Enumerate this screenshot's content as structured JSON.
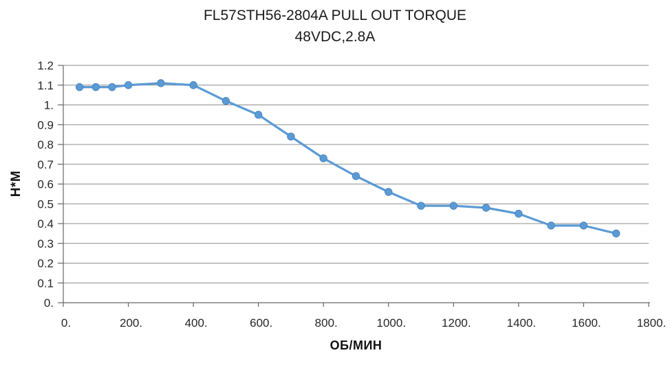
{
  "chart_data": {
    "type": "line",
    "title": "FL57STH56-2804A PULL OUT TORQUE",
    "subtitle": "48VDC,2.8A",
    "xlabel": "ОБ/МИН",
    "ylabel": "Н*М",
    "x": [
      50,
      100,
      150,
      200,
      300,
      400,
      500,
      600,
      700,
      800,
      900,
      1000,
      1100,
      1200,
      1300,
      1400,
      1500,
      1600,
      1700
    ],
    "values": [
      1.09,
      1.09,
      1.09,
      1.1,
      1.11,
      1.1,
      1.02,
      0.95,
      0.84,
      0.73,
      0.64,
      0.56,
      0.49,
      0.49,
      0.48,
      0.45,
      0.39,
      0.39,
      0.35
    ],
    "xlim": [
      0,
      1800
    ],
    "ylim": [
      0,
      1.2
    ],
    "x_ticks": {
      "values": [
        0,
        200,
        400,
        600,
        800,
        1000,
        1200,
        1400,
        1600,
        1800
      ],
      "labels": [
        "0.",
        "200.",
        "400.",
        "600.",
        "800.",
        "1000.",
        "1200.",
        "1400.",
        "1600.",
        "1800."
      ]
    },
    "y_ticks": {
      "values": [
        0,
        0.1,
        0.2,
        0.3,
        0.4,
        0.5,
        0.6,
        0.7,
        0.8,
        0.9,
        1.0,
        1.1,
        1.2
      ],
      "labels": [
        "0.",
        "0.1",
        "0.2",
        "0.3",
        "0.4",
        "0.5",
        "0.6",
        "0.7",
        "0.8",
        "0.9",
        "1.",
        "1.1",
        "1.2"
      ]
    },
    "grid": "horizontal",
    "legend": "none",
    "colors": {
      "line": "#5B9BD5",
      "marker": "#5B9BD5",
      "marker_edge": "#4A84C3",
      "grid": "#8C8C8C",
      "axis": "#666666",
      "tick_text": "#262626",
      "title_text": "#1A1A1A"
    }
  }
}
